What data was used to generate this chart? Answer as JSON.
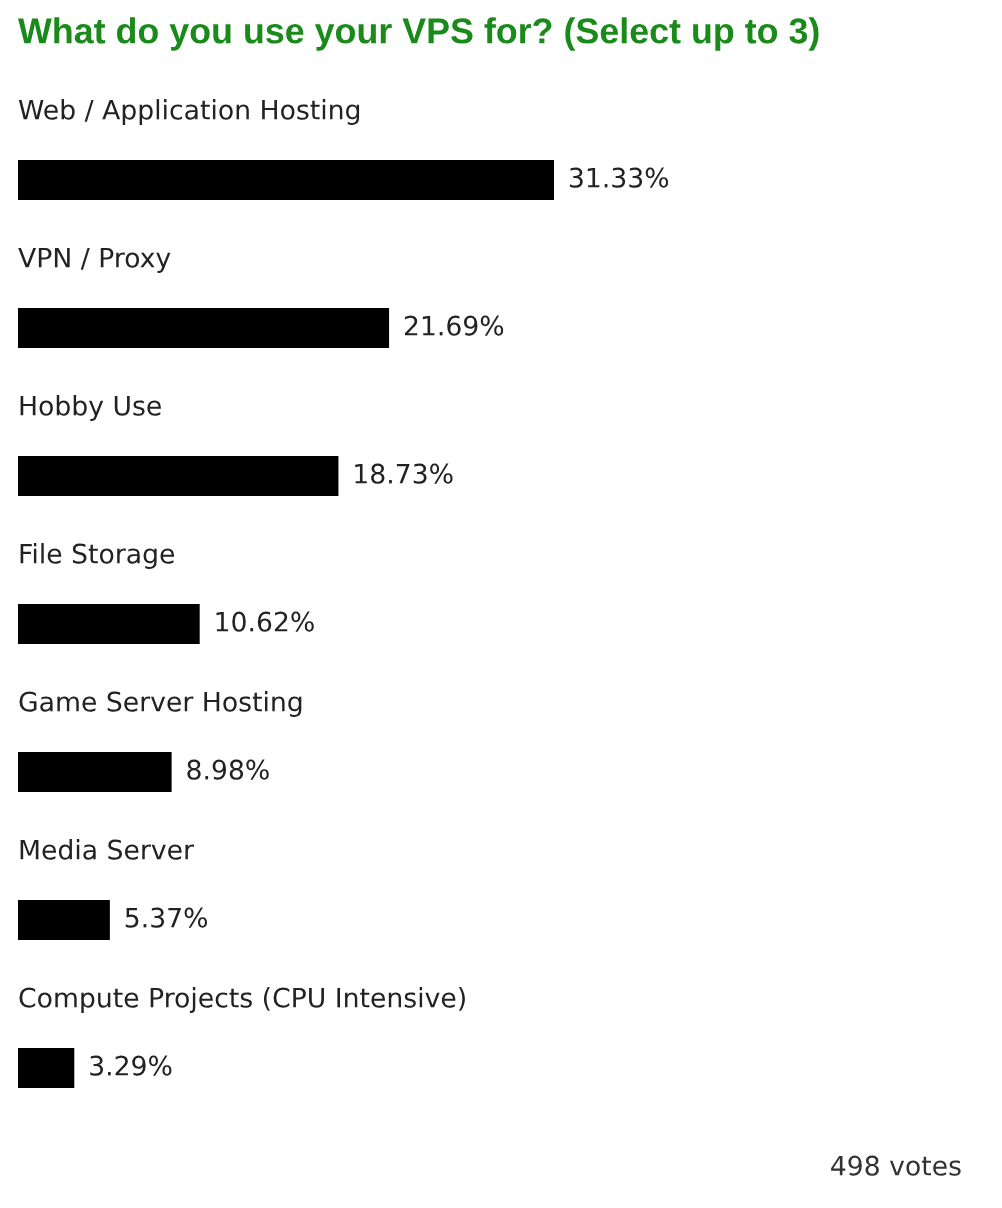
{
  "chart_data": {
    "type": "bar",
    "orientation": "horizontal",
    "title": "What do you use your VPS for? (Select up to 3)",
    "categories": [
      "Web / Application Hosting",
      "VPN / Proxy",
      "Hobby Use",
      "File Storage",
      "Game Server Hosting",
      "Media Server",
      "Compute Projects (CPU Intensive)"
    ],
    "values": [
      31.33,
      21.69,
      18.73,
      10.62,
      8.98,
      5.37,
      3.29
    ],
    "value_labels": [
      "31.33%",
      "21.69%",
      "18.73%",
      "10.62%",
      "8.98%",
      "5.37%",
      "3.29%"
    ],
    "color": "#000000",
    "tick_labels": "y",
    "annotations": [
      "498 votes"
    ]
  }
}
